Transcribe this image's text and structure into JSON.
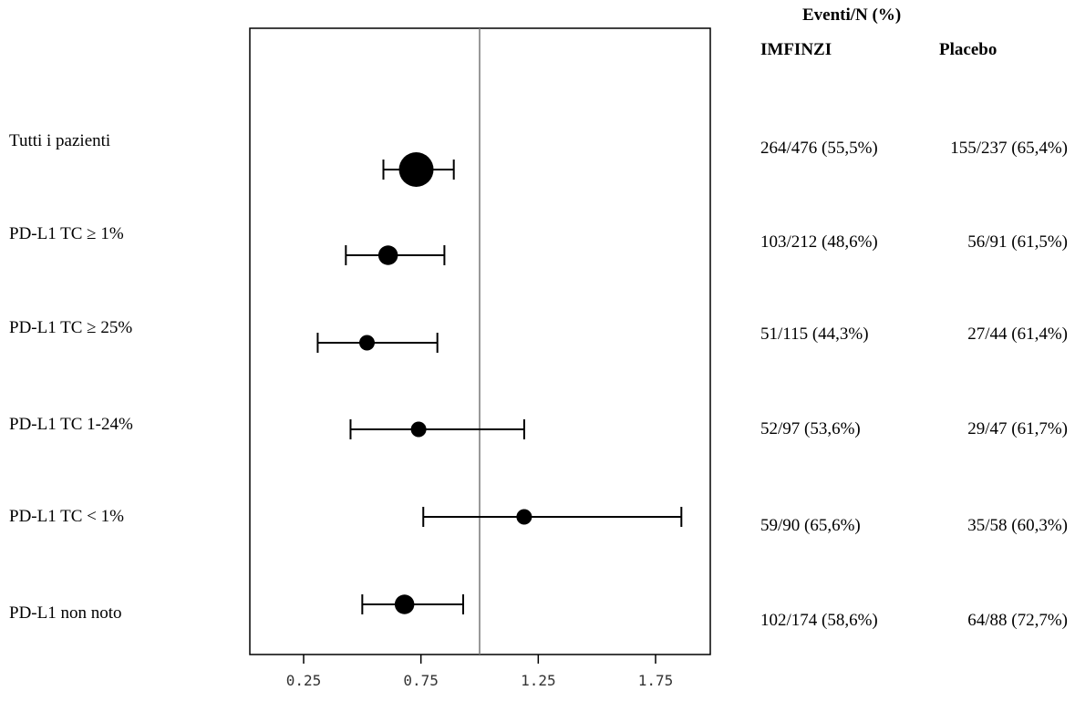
{
  "chart_data": {
    "type": "forest",
    "title": "",
    "xlabel": "",
    "ylabel": "",
    "xlim": [
      0.0,
      2.0
    ],
    "xticks": [
      0.25,
      0.75,
      1.25,
      1.75
    ],
    "xtick_labels": [
      "0.25",
      "0.75",
      "1.25",
      "1.75"
    ],
    "reference_line": 1.0,
    "grid": false,
    "header_group": "Eventi/N (%)",
    "columns": [
      "IMFINZI",
      "Placebo"
    ],
    "rows": [
      {
        "label": "Tutti i pazienti",
        "estimate": 0.73,
        "ci_low": 0.59,
        "ci_high": 0.89,
        "marker_weight": 1.0,
        "imfinzi": "264/476 (55,5%)",
        "placebo": "155/237 (65,4%)"
      },
      {
        "label": "PD-L1 TC  ≥ 1%",
        "estimate": 0.61,
        "ci_low": 0.43,
        "ci_high": 0.85,
        "marker_weight": 0.45,
        "imfinzi": "103/212 (48,6%)",
        "placebo": "56/91 (61,5%)"
      },
      {
        "label": "PD-L1 TC ≥ 25%",
        "estimate": 0.52,
        "ci_low": 0.31,
        "ci_high": 0.82,
        "marker_weight": 0.3,
        "imfinzi": "51/115 (44,3%)",
        "placebo": "27/44 (61,4%)"
      },
      {
        "label": "PD-L1 TC 1-24%",
        "estimate": 0.74,
        "ci_low": 0.45,
        "ci_high": 1.19,
        "marker_weight": 0.3,
        "imfinzi": "52/97 (53,6%)",
        "placebo": "29/47 (61,7%)"
      },
      {
        "label": "PD-L1 TC < 1%",
        "estimate": 1.19,
        "ci_low": 0.76,
        "ci_high": 1.86,
        "marker_weight": 0.3,
        "imfinzi": "59/90 (65,6%)",
        "placebo": "35/58 (60,3%)"
      },
      {
        "label": "PD-L1 non noto",
        "estimate": 0.68,
        "ci_low": 0.5,
        "ci_high": 0.93,
        "marker_weight": 0.45,
        "imfinzi": "102/174 (58,6%)",
        "placebo": "64/88 (72,7%)"
      }
    ]
  }
}
